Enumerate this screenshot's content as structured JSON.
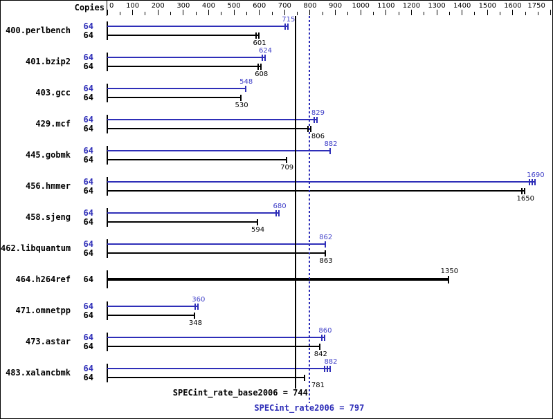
{
  "header": {
    "copies_label": "Copies"
  },
  "colors": {
    "peak_blue": "#2e2eb8",
    "peak_label_blue": "#4040c8",
    "base_black": "#000000",
    "background": "#ffffff"
  },
  "chart_data": {
    "type": "bar",
    "orientation": "horizontal",
    "title": "",
    "xlabel": "Copies",
    "axis": {
      "min": 0,
      "max": 1750,
      "major_tick_step": 100,
      "minor_tick_step": 50,
      "tick_labels": [
        "0",
        "100",
        "200",
        "300",
        "400",
        "500",
        "600",
        "700",
        "800",
        "900",
        "1000",
        "1100",
        "1200",
        "1300",
        "1400",
        "1500",
        "1600",
        "1750"
      ]
    },
    "benchmarks": [
      {
        "name": "400.perlbench",
        "copies_peak": "64",
        "copies_base": "64",
        "peak": 715,
        "base": 601,
        "peak_marks": 2,
        "base_marks": 2
      },
      {
        "name": "401.bzip2",
        "copies_peak": "64",
        "copies_base": "64",
        "peak": 624,
        "base": 608,
        "peak_marks": 2,
        "base_marks": 2
      },
      {
        "name": "403.gcc",
        "copies_peak": "64",
        "copies_base": "64",
        "peak": 548,
        "base": 530,
        "peak_marks": 1,
        "base_marks": 1
      },
      {
        "name": "429.mcf",
        "copies_peak": "64",
        "copies_base": "64",
        "peak": 829,
        "base": 806,
        "peak_marks": 2,
        "base_marks": 2
      },
      {
        "name": "445.gobmk",
        "copies_peak": "64",
        "copies_base": "64",
        "peak": 882,
        "base": 709,
        "peak_marks": 1,
        "base_marks": 1
      },
      {
        "name": "456.hmmer",
        "copies_peak": "64",
        "copies_base": "64",
        "peak": 1690,
        "base": 1650,
        "peak_marks": 3,
        "base_marks": 2
      },
      {
        "name": "458.sjeng",
        "copies_peak": "64",
        "copies_base": "64",
        "peak": 680,
        "base": 594,
        "peak_marks": 2,
        "base_marks": 1
      },
      {
        "name": "462.libquantum",
        "copies_peak": "64",
        "copies_base": "64",
        "peak": 862,
        "base": 863,
        "peak_marks": 1,
        "base_marks": 1
      },
      {
        "name": "464.h264ref",
        "copies_base": "64",
        "peak": null,
        "base": 1350,
        "base_marks": 1,
        "base_bold": true
      },
      {
        "name": "471.omnetpp",
        "copies_peak": "64",
        "copies_base": "64",
        "peak": 360,
        "base": 348,
        "peak_marks": 2,
        "base_marks": 1
      },
      {
        "name": "473.astar",
        "copies_peak": "64",
        "copies_base": "64",
        "peak": 860,
        "base": 842,
        "peak_marks": 2,
        "base_marks": 1
      },
      {
        "name": "483.xalancbmk",
        "copies_peak": "64",
        "copies_base": "64",
        "peak": 882,
        "base": 781,
        "peak_marks": 3,
        "base_marks": 1
      }
    ],
    "reference_lines": [
      {
        "id": "base",
        "value": 744,
        "style": "solid",
        "color": "#000000",
        "label": "SPECint_rate_base2006 = 744"
      },
      {
        "id": "peak",
        "value": 797,
        "style": "dotted",
        "color": "#2e2eb8",
        "label": "SPECint_rate2006 = 797"
      }
    ]
  }
}
